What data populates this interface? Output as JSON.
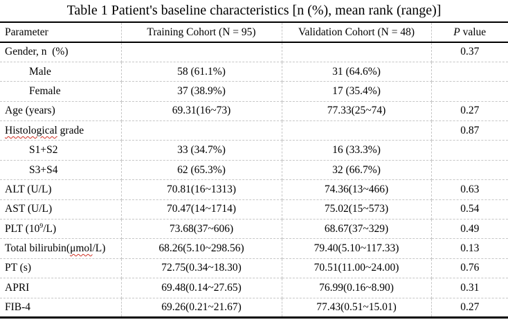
{
  "title": "Table 1 Patient's baseline characteristics [n (%), mean rank (range)]",
  "header": {
    "parameter": "Parameter",
    "training": "Training Cohort (N = 95)",
    "validation": "Validation Cohort (N = 48)",
    "p_italic": "P",
    "p_rest": " value"
  },
  "rows": [
    {
      "param": "Gender, n  (%)",
      "training": "",
      "validation": "",
      "p": "0.37",
      "indent": false
    },
    {
      "param": "Male",
      "training": "58 (61.1%)",
      "validation": "31 (64.6%)",
      "p": "",
      "indent": true
    },
    {
      "param": "Female",
      "training": "37 (38.9%)",
      "validation": "17 (35.4%)",
      "p": "",
      "indent": true
    },
    {
      "param": "Age (years)",
      "training": "69.31(16~73)",
      "validation": "77.33(25~74)",
      "p": "0.27",
      "indent": false
    },
    {
      "param_parts": {
        "misspelled": "Histological",
        "rest": " grade"
      },
      "training": "",
      "validation": "",
      "p": "0.87",
      "indent": false
    },
    {
      "param": "S1+S2",
      "training": "33 (34.7%)",
      "validation": "16 (33.3%)",
      "p": "",
      "indent": true
    },
    {
      "param": "S3+S4",
      "training": "62 (65.3%)",
      "validation": "32 (66.7%)",
      "p": "",
      "indent": true
    },
    {
      "param": "ALT (U/L)",
      "training": "70.81(16~1313)",
      "validation": "74.36(13~466)",
      "p": "0.63",
      "indent": false
    },
    {
      "param": "AST (U/L)",
      "training": "70.47(14~1714)",
      "validation": "75.02(15~573)",
      "p": "0.54",
      "indent": false
    },
    {
      "param_parts": {
        "pre": "PLT (10",
        "sup": "9",
        "post": "/L)"
      },
      "training": "73.68(37~606)",
      "validation": "68.67(37~329)",
      "p": "0.49",
      "indent": false
    },
    {
      "param_parts": {
        "pre": "Total bilirubin(",
        "misspelled": "μmol",
        "post": "/L)"
      },
      "training": "68.26(5.10~298.56)",
      "validation": "79.40(5.10~117.33)",
      "p": "0.13",
      "indent": false
    },
    {
      "param": "PT (s)",
      "training": "72.75(0.34~18.30)",
      "validation": "70.51(11.00~24.00)",
      "p": "0.76",
      "indent": false
    },
    {
      "param": "APRI",
      "training": "69.48(0.14~27.65)",
      "validation": "76.99(0.16~8.90)",
      "p": "0.31",
      "indent": false
    },
    {
      "param": "FIB-4",
      "training": "69.26(0.21~21.67)",
      "validation": "77.43(0.51~15.01)",
      "p": "0.27",
      "indent": false
    }
  ],
  "colors": {
    "text": "#000000",
    "solid_border": "#000000",
    "dashed_grid": "#c6c6c6",
    "spellcheck_squiggle": "#cf2e21",
    "background": "#ffffff"
  }
}
